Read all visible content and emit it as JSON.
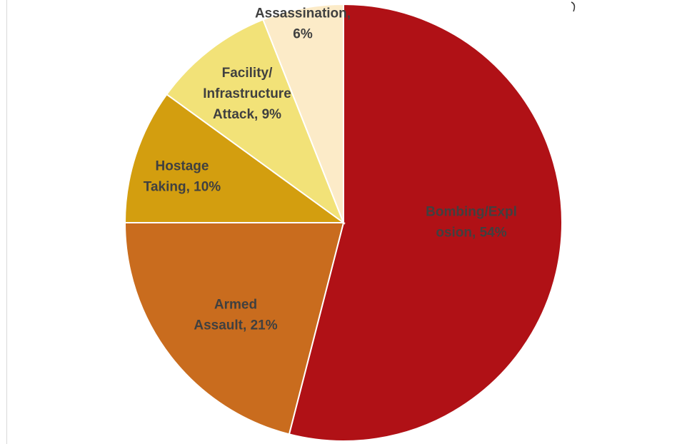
{
  "chart_data": {
    "type": "pie",
    "slices": [
      {
        "label_lines": [
          "Bombing/Expl",
          "osion, 54%"
        ],
        "value": 54,
        "color": "#b01116"
      },
      {
        "label_lines": [
          "Armed",
          "Assault, 21%"
        ],
        "value": 21,
        "color": "#c96c1e"
      },
      {
        "label_lines": [
          "Hostage",
          "Taking, 10%"
        ],
        "value": 10,
        "color": "#d39e0f"
      },
      {
        "label_lines": [
          "Facility/",
          "Infrastructure",
          "Attack, 9%"
        ],
        "value": 9,
        "color": "#f2e278"
      },
      {
        "label_lines": [
          "Assassination,",
          "6%"
        ],
        "value": 6,
        "color": "#fcebc8"
      }
    ],
    "start_angle": "12 o'clock",
    "direction": "clockwise",
    "legend": "none"
  }
}
